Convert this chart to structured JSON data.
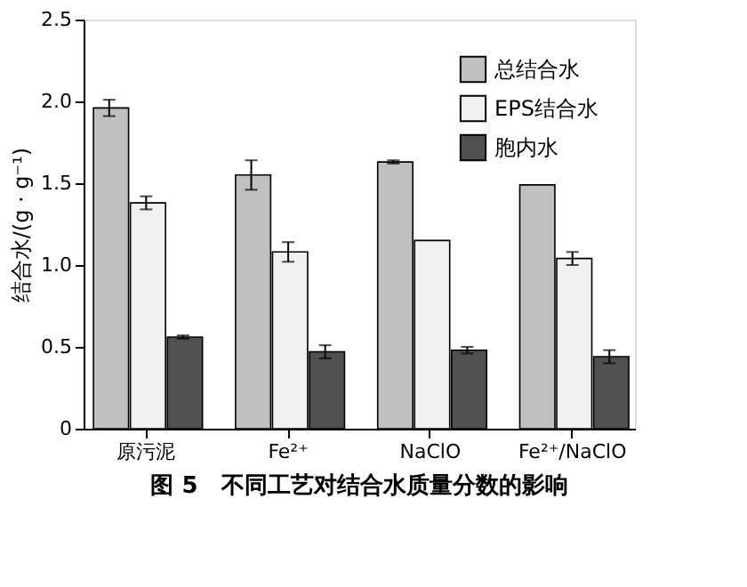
{
  "chart_data": {
    "type": "bar",
    "title": "图 5　不同工艺对结合水质量分数的影响",
    "ylabel": "结合水/(g · g⁻¹)",
    "categories": [
      "原污泥",
      "Fe²⁺",
      "NaClO",
      "Fe²⁺/NaClO"
    ],
    "series": [
      {
        "name": "总结合水",
        "color": "#c0c0c0",
        "values": [
          1.96,
          1.55,
          1.63,
          1.49
        ],
        "errors": [
          0.05,
          0.09,
          0.01,
          null
        ]
      },
      {
        "name": "EPS结合水",
        "color": "#f0f0f0",
        "values": [
          1.38,
          1.08,
          1.15,
          1.04
        ],
        "errors": [
          0.04,
          0.06,
          null,
          0.04
        ]
      },
      {
        "name": "胞内水",
        "color": "#505050",
        "values": [
          0.56,
          0.47,
          0.48,
          0.44
        ],
        "errors": [
          0.01,
          0.04,
          0.02,
          0.04
        ]
      }
    ],
    "ylim": [
      0,
      2.5
    ],
    "yticks": [
      {
        "value": 0,
        "label": "0"
      },
      {
        "value": 0.5,
        "label": "0.5"
      },
      {
        "value": 1,
        "label": "1.0"
      },
      {
        "value": 1.5,
        "label": "1.5"
      },
      {
        "value": 2,
        "label": "2.0"
      },
      {
        "value": 2.5,
        "label": "2.5"
      }
    ],
    "legend": "top right",
    "grid": false
  }
}
